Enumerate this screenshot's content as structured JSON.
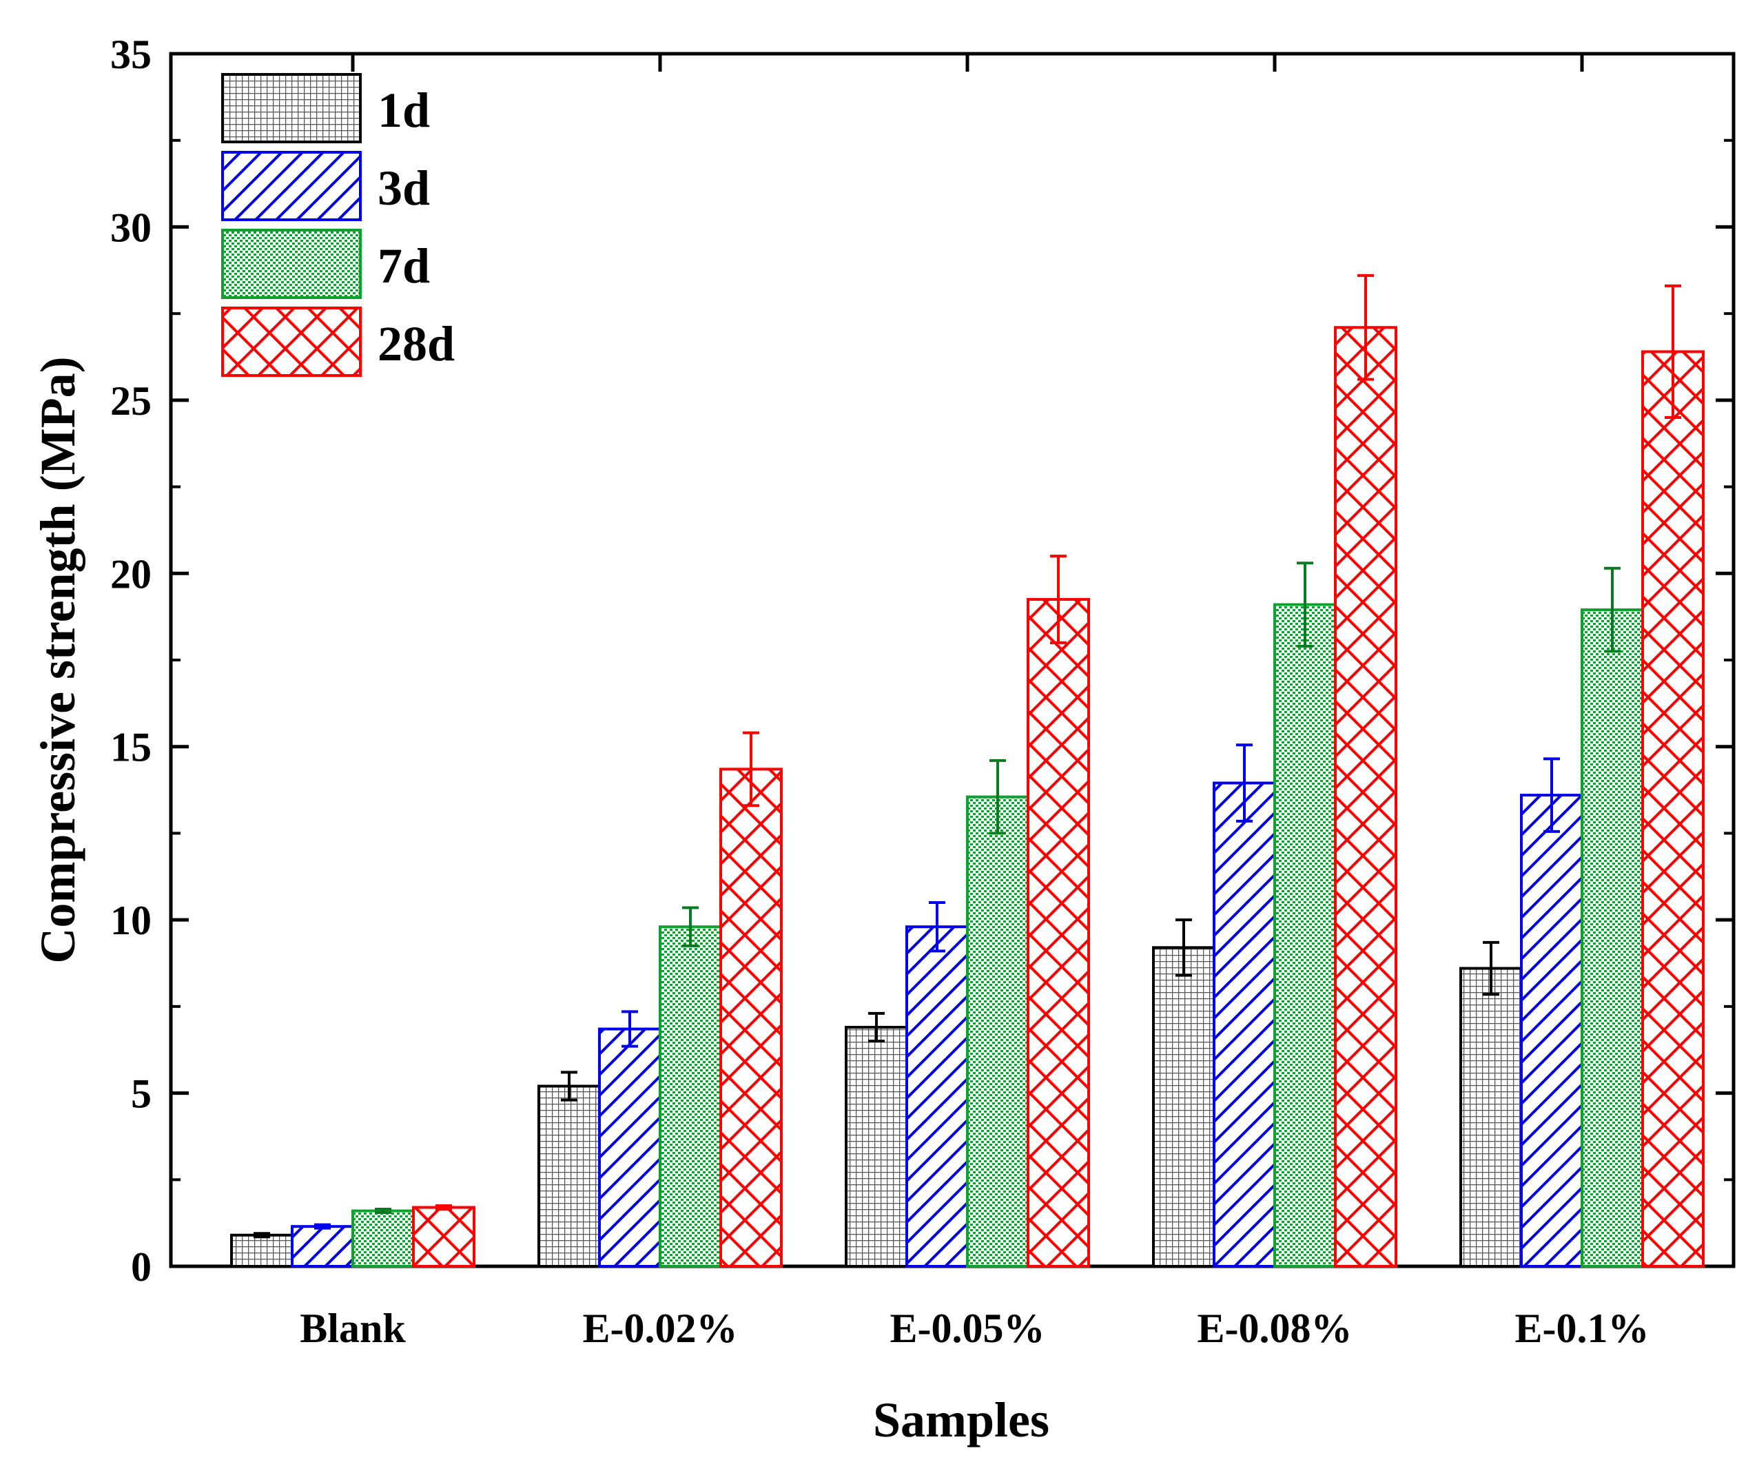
{
  "chart_data": {
    "type": "bar",
    "title": "",
    "xlabel": "Samples",
    "ylabel": "Compressive strength (MPa)",
    "ylim": [
      0,
      35
    ],
    "yticks": [
      0,
      5,
      10,
      15,
      20,
      25,
      30,
      35
    ],
    "ytick_labels": [
      "0",
      "5",
      "10",
      "15",
      "20",
      "25",
      "30",
      "35"
    ],
    "categories": [
      "Blank",
      "E-0.02%",
      "E-0.05%",
      "E-0.08%",
      "E-0.1%"
    ],
    "legend_position": "top-left",
    "series": [
      {
        "name": "1d",
        "color": "#000000",
        "pattern": "grid",
        "values": [
          0.9,
          5.2,
          6.9,
          9.2,
          8.6
        ],
        "errors": [
          0.05,
          0.4,
          0.4,
          0.8,
          0.75
        ]
      },
      {
        "name": "3d",
        "color": "#0000ee",
        "pattern": "hatch",
        "values": [
          1.15,
          6.85,
          9.8,
          13.95,
          13.6
        ],
        "errors": [
          0.05,
          0.5,
          0.7,
          1.1,
          1.05
        ]
      },
      {
        "name": "7d",
        "color": "#10a030",
        "pattern": "dots",
        "values": [
          1.6,
          9.8,
          13.55,
          19.1,
          18.95
        ],
        "errors": [
          0.05,
          0.55,
          1.05,
          1.2,
          1.2
        ]
      },
      {
        "name": "28d",
        "color": "#ff0000",
        "pattern": "cross",
        "values": [
          1.7,
          14.35,
          19.25,
          27.1,
          26.4
        ],
        "errors": [
          0.05,
          1.05,
          1.25,
          1.5,
          1.9
        ]
      }
    ]
  }
}
